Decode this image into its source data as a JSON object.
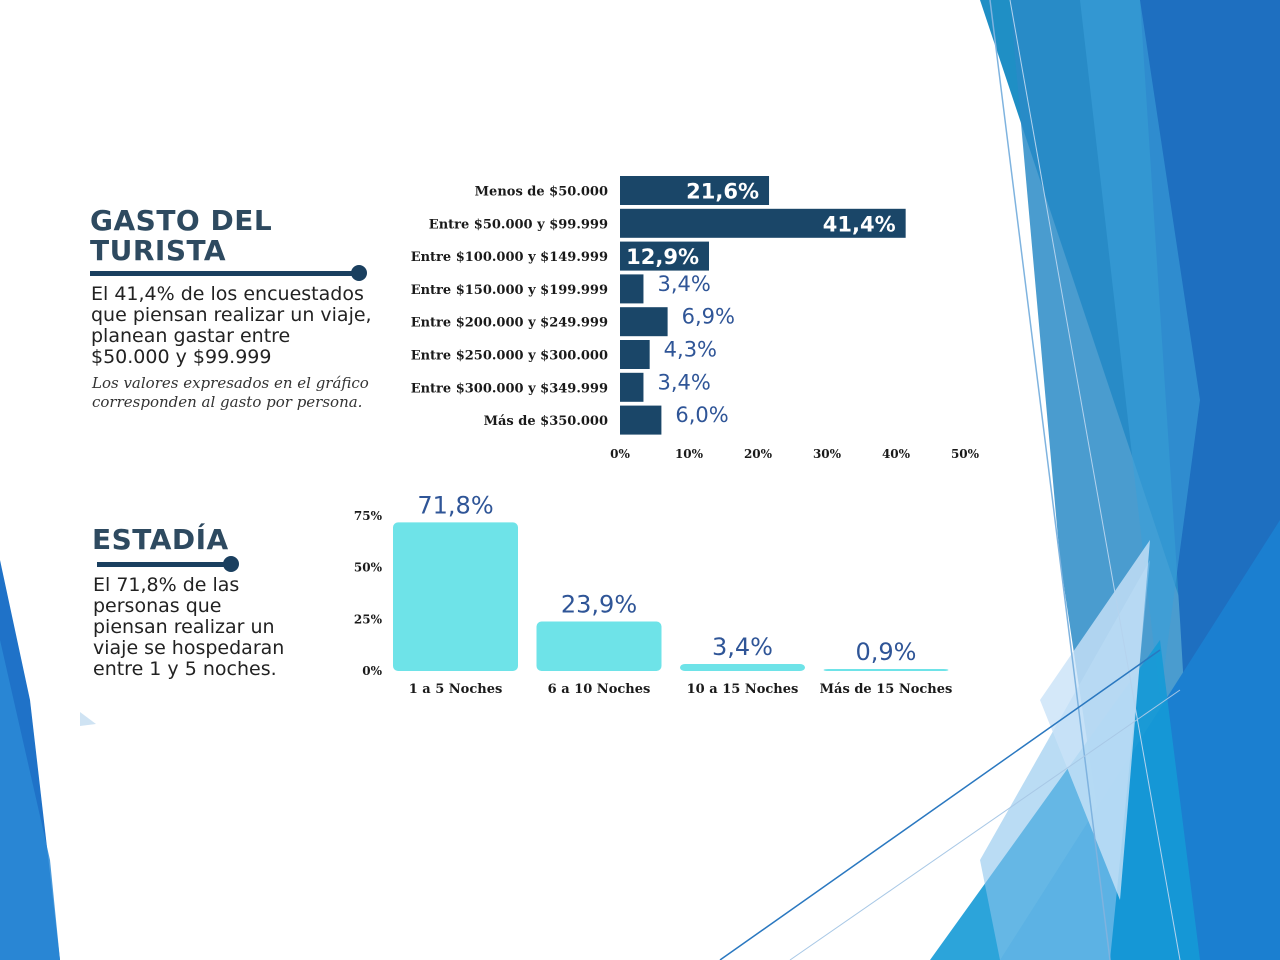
{
  "colors": {
    "bar_dark": "#1a4668",
    "bar_light": "#6ee3e8",
    "value_text": "#2f5597",
    "title": "#2e4a60"
  },
  "gasto": {
    "title_line1": "GASTO DEL",
    "title_line2": "TURISTA",
    "desc_lines": [
      "El 41,4% de los encuestados",
      "que piensan realizar un viaje,",
      "planean gastar entre",
      "$50.000 y $99.999"
    ],
    "note_lines": [
      "Los valores expresados en el gráfico",
      "corresponden al gasto por persona."
    ]
  },
  "estadia": {
    "title": "ESTADÍA",
    "desc_lines": [
      "El 71,8% de las",
      "personas que",
      "piensan realizar un",
      "viaje se hospedaran",
      "entre 1 y 5 noches."
    ]
  },
  "chart_data": [
    {
      "type": "bar",
      "orientation": "horizontal",
      "title": "",
      "categories": [
        "Menos de $50.000",
        "Entre $50.000 y $99.999",
        "Entre $100.000 y $149.999",
        "Entre $150.000 y $199.999",
        "Entre $200.000 y $249.999",
        "Entre $250.000 y $300.000",
        "Entre $300.000 y $349.999",
        "Más de $350.000"
      ],
      "values": [
        21.6,
        41.4,
        12.9,
        3.4,
        6.9,
        4.3,
        3.4,
        6.0
      ],
      "value_labels": [
        "21,6%",
        "41,4%",
        "12,9%",
        "3,4%",
        "6,9%",
        "4,3%",
        "3,4%",
        "6,0%"
      ],
      "xlim": [
        0,
        50
      ],
      "ticks": [
        0,
        10,
        20,
        30,
        40,
        50
      ],
      "tick_labels": [
        "0%",
        "10%",
        "20%",
        "30%",
        "40%",
        "50%"
      ],
      "grid": false,
      "color": "#1a4668"
    },
    {
      "type": "bar",
      "orientation": "vertical",
      "title": "",
      "categories": [
        "1 a 5 Noches",
        "6 a 10 Noches",
        "10 a 15 Noches",
        "Más de 15 Noches"
      ],
      "values": [
        71.8,
        23.9,
        3.4,
        0.9
      ],
      "value_labels": [
        "71,8%",
        "23,9%",
        "3,4%",
        "0,9%"
      ],
      "ylim": [
        0,
        75
      ],
      "ticks": [
        0,
        25,
        50,
        75
      ],
      "tick_labels": [
        "0%",
        "25%",
        "50%",
        "75%"
      ],
      "grid": false,
      "color": "#6ee3e8"
    }
  ]
}
